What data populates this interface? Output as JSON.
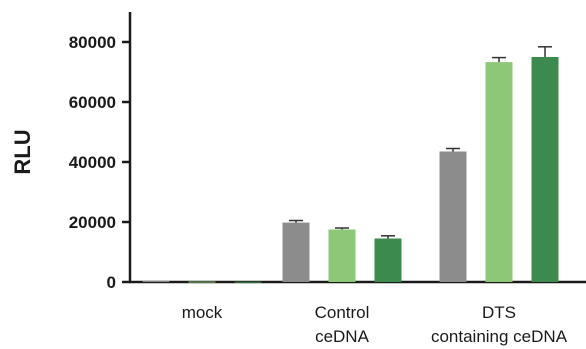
{
  "chart_data": {
    "type": "bar",
    "ylabel": "RLU",
    "xlabel": "",
    "title": "",
    "ylim": [
      0,
      90000
    ],
    "yticks": [
      "0",
      "20000",
      "40000",
      "60000",
      "80000"
    ],
    "categories": [
      [
        "mock"
      ],
      [
        "Control",
        "ceDNA"
      ],
      [
        "DTS",
        "containing ceDNA"
      ]
    ],
    "series": [
      {
        "color": "#8c8c8c",
        "values": [
          300,
          19800,
          43500
        ],
        "errors": [
          0,
          700,
          1000
        ]
      },
      {
        "color": "#8cc878",
        "values": [
          150,
          17500,
          73300
        ],
        "errors": [
          0,
          500,
          1500
        ]
      },
      {
        "color": "#3d8a4e",
        "values": [
          100,
          14500,
          75000
        ],
        "errors": [
          0,
          900,
          3400
        ]
      }
    ],
    "grid": false,
    "legend": "none"
  }
}
